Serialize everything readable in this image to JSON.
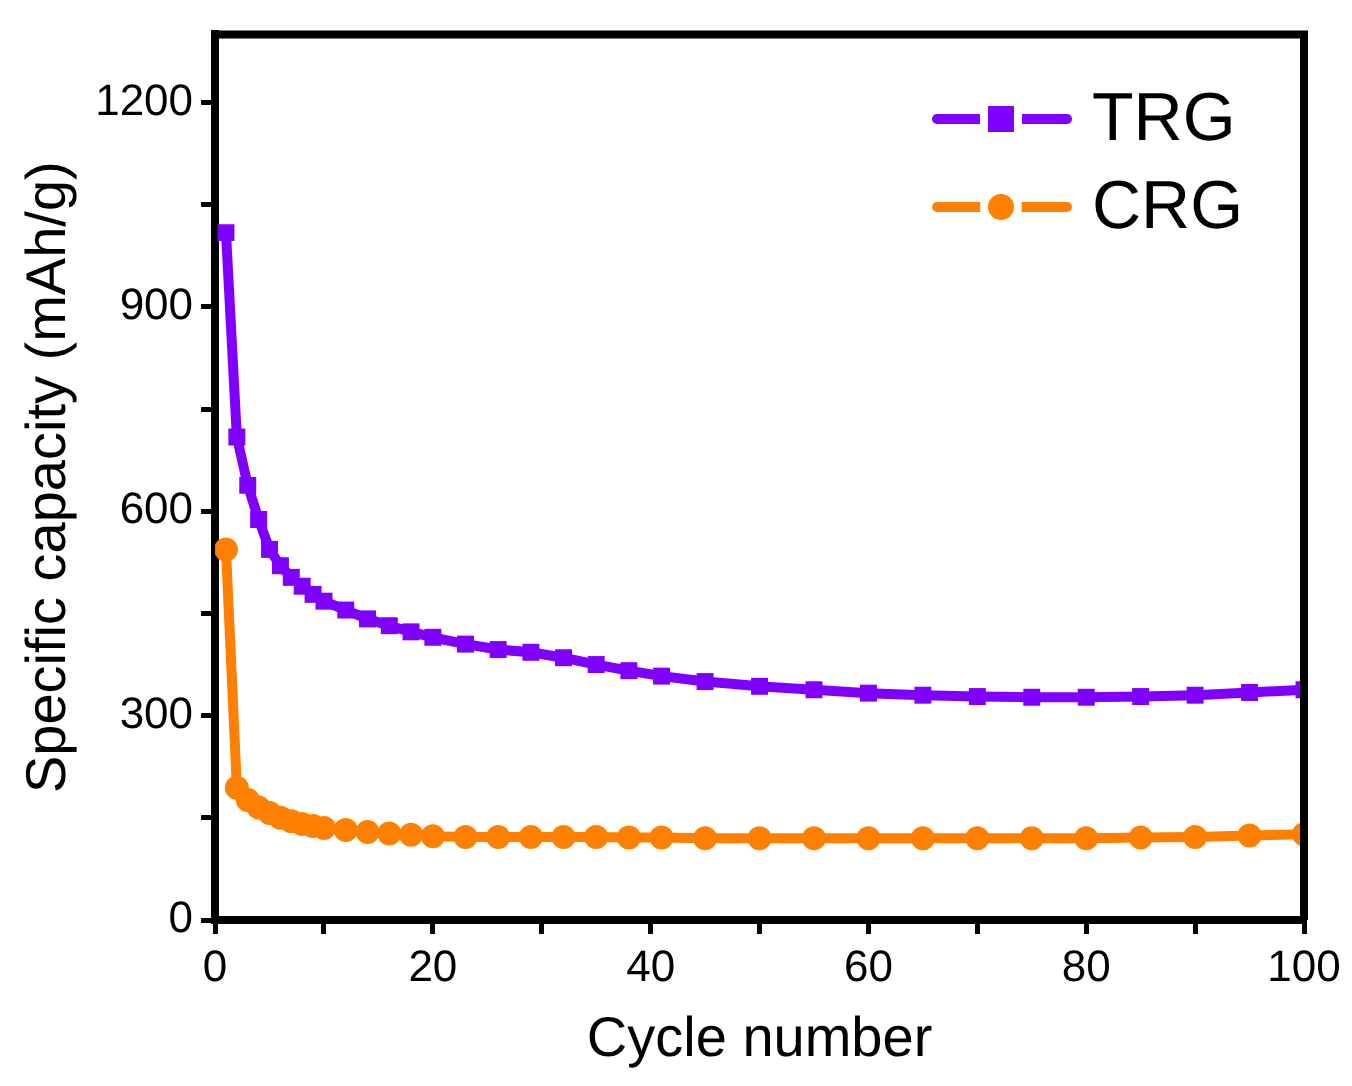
{
  "chart_data": {
    "type": "line",
    "xlabel": "Cycle number",
    "ylabel": "Specific capacity (mAh/g)",
    "xlim": [
      0,
      100
    ],
    "xticks": [
      0,
      {
        "value": 10,
        "label": null
      },
      20,
      {
        "value": 30,
        "label": null
      },
      40,
      {
        "value": 50,
        "label": null
      },
      60,
      {
        "value": 70,
        "label": null
      },
      80,
      {
        "value": 90,
        "label": null
      },
      100
    ],
    "ylim": [
      0,
      1300
    ],
    "yticks": [
      0,
      {
        "value": 150,
        "label": null
      },
      300,
      {
        "value": 450,
        "label": null
      },
      600,
      {
        "value": 750,
        "label": null
      },
      900,
      {
        "value": 1050,
        "label": null
      },
      1200
    ],
    "grid": false,
    "legend": "top right",
    "line_style": "solid",
    "series": [
      {
        "name": "TRG",
        "color": "#8000ff",
        "marker": "square",
        "x": [
          1,
          2,
          3,
          4,
          5,
          6,
          7,
          8,
          9,
          10,
          12,
          14,
          16,
          18,
          20,
          23,
          26,
          29,
          32,
          35,
          38,
          41,
          45,
          50,
          55,
          60,
          65,
          70,
          75,
          80,
          85,
          90,
          95,
          100
        ],
        "values": [
          1009,
          709,
          638,
          588,
          544,
          520,
          503,
          490,
          478,
          468,
          455,
          442,
          432,
          423,
          415,
          405,
          397,
          393,
          385,
          375,
          366,
          358,
          350,
          343,
          338,
          333,
          330,
          328,
          327,
          327,
          328,
          330,
          334,
          338
        ]
      },
      {
        "name": "CRG",
        "color": "#ff8000",
        "marker": "circle",
        "x": [
          1,
          2,
          3,
          4,
          5,
          6,
          7,
          8,
          9,
          10,
          12,
          14,
          16,
          18,
          20,
          23,
          26,
          29,
          32,
          35,
          38,
          41,
          45,
          50,
          55,
          60,
          65,
          70,
          75,
          80,
          85,
          90,
          95,
          100
        ],
        "values": [
          544,
          194,
          176,
          165,
          157,
          150,
          145,
          141,
          138,
          135,
          132,
          129,
          127,
          125,
          123,
          122,
          122,
          122,
          122,
          122,
          121,
          121,
          120,
          120,
          120,
          120,
          120,
          120,
          120,
          120,
          121,
          122,
          124,
          126
        ]
      }
    ]
  }
}
